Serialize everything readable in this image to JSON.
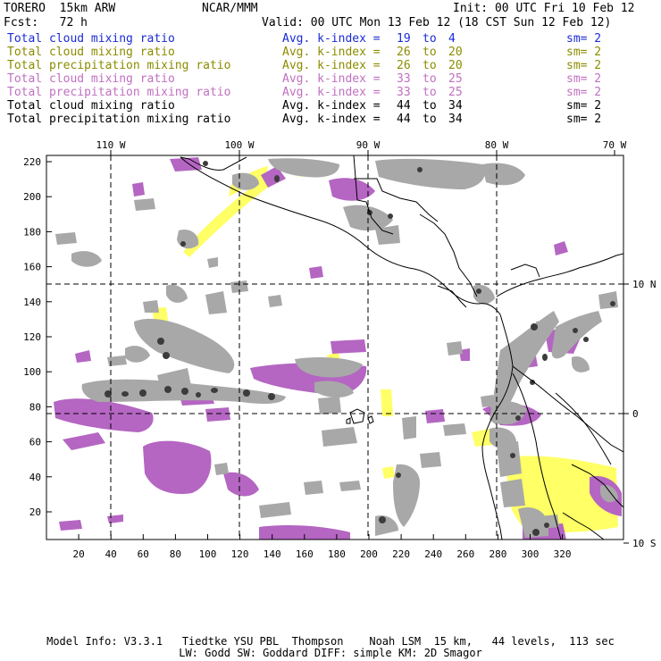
{
  "header": {
    "model": "TORERO  15km ARW",
    "org": "NCAR/MMM",
    "init": "Init: 00 UTC Fri 10 Feb 12",
    "fcst": "Fcst:   72 h",
    "valid": "Valid: 00 UTC Mon 13 Feb 12 (18 CST Sun 12 Feb 12)"
  },
  "legend": [
    {
      "field": "Total cloud mixing ratio",
      "k": "Avg. k-index =",
      "v1": "19",
      "to": "to",
      "v2": "4",
      "sm": "sm= 2",
      "color": "#1a2bd6"
    },
    {
      "field": "Total cloud mixing ratio",
      "k": "Avg. k-index =",
      "v1": "26",
      "to": "to",
      "v2": "20",
      "sm": "sm= 2",
      "color": "#8c8c00"
    },
    {
      "field": "Total precipitation mixing ratio",
      "k": "Avg. k-index =",
      "v1": "26",
      "to": "to",
      "v2": "20",
      "sm": "sm= 2",
      "color": "#8c8c00"
    },
    {
      "field": "Total cloud mixing ratio",
      "k": "Avg. k-index =",
      "v1": "33",
      "to": "to",
      "v2": "25",
      "sm": "sm= 2",
      "color": "#c070c0"
    },
    {
      "field": "Total precipitation mixing ratio",
      "k": "Avg. k-index =",
      "v1": "33",
      "to": "to",
      "v2": "25",
      "sm": "sm= 2",
      "color": "#c070c0"
    },
    {
      "field": "Total cloud mixing ratio",
      "k": "Avg. k-index =",
      "v1": "44",
      "to": "to",
      "v2": "34",
      "sm": "sm= 2",
      "color": "#000000"
    },
    {
      "field": "Total precipitation mixing ratio",
      "k": "Avg. k-index =",
      "v1": "44",
      "to": "to",
      "v2": "34",
      "sm": "sm= 2",
      "color": "#000000"
    }
  ],
  "axes": {
    "lon_labels": [
      "110 W",
      "100 W",
      "90 W",
      "80 W",
      "70 W"
    ],
    "lat_labels": [
      "10 N",
      "0",
      "10 S"
    ],
    "x_ticks": [
      "20",
      "40",
      "60",
      "80",
      "100",
      "120",
      "140",
      "160",
      "180",
      "200",
      "220",
      "240",
      "260",
      "280",
      "300",
      "320"
    ],
    "y_ticks": [
      "220",
      "200",
      "180",
      "160",
      "140",
      "120",
      "100",
      "80",
      "60",
      "40",
      "20"
    ]
  },
  "colors": {
    "purple": "#b466c2",
    "yellow": "#ffff66",
    "gray": "#a8a8a8",
    "dark": "#3c3c3c",
    "coast": "#000000",
    "grid": "#000000"
  },
  "footer": {
    "line1": "Model Info: V3.3.1   Tiedtke YSU PBL  Thompson    Noah LSM  15 km,   44 levels,  113 sec",
    "line2": "LW: Godd SW: Goddard DIFF: simple KM: 2D Smagor"
  }
}
